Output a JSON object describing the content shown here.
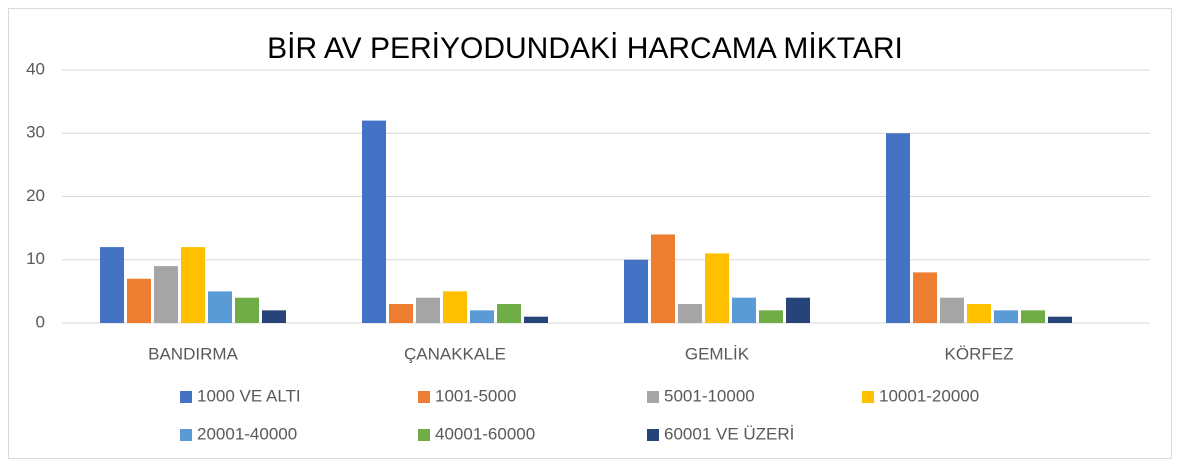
{
  "chart_data": {
    "type": "bar",
    "title": "BİR AV PERİYODUNDAKİ HARCAMA MİKTARI",
    "categories": [
      "BANDIRMA",
      "ÇANAKKALE",
      "GEMLİK",
      "KÖRFEZ"
    ],
    "series": [
      {
        "name": "1000 VE ALTI",
        "color": "#4472c4",
        "values": [
          12,
          32,
          10,
          30
        ]
      },
      {
        "name": "1001-5000",
        "color": "#ed7d31",
        "values": [
          7,
          3,
          14,
          8
        ]
      },
      {
        "name": "5001-10000",
        "color": "#a5a5a5",
        "values": [
          9,
          4,
          3,
          4
        ]
      },
      {
        "name": "10001-20000",
        "color": "#ffc000",
        "values": [
          12,
          5,
          11,
          3
        ]
      },
      {
        "name": "20001-40000",
        "color": "#5b9bd5",
        "values": [
          5,
          2,
          4,
          2
        ]
      },
      {
        "name": "40001-60000",
        "color": "#70ad47",
        "values": [
          4,
          3,
          2,
          2
        ]
      },
      {
        "name": "60001 VE ÜZERİ",
        "color": "#264478",
        "values": [
          2,
          1,
          4,
          1
        ]
      }
    ],
    "ylim": [
      0,
      40
    ],
    "yticks": [
      0,
      10,
      20,
      30,
      40
    ],
    "grid": true,
    "legend": "bottom"
  }
}
